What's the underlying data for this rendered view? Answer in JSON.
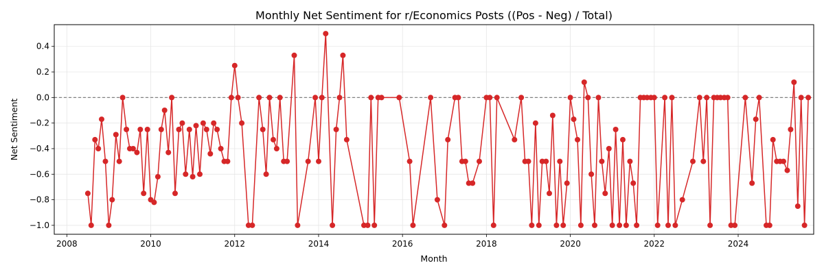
{
  "chart_data": {
    "type": "line",
    "title": "Monthly Net Sentiment for r/Economics Posts ((Pos - Neg) / Total)",
    "xlabel": "Month",
    "ylabel": "Net Sentiment",
    "xlim": [
      2007.7,
      2025.8
    ],
    "ylim": [
      -1.07,
      0.57
    ],
    "x_ticks": [
      2008,
      2010,
      2012,
      2014,
      2016,
      2018,
      2020,
      2022,
      2024
    ],
    "x_tick_labels": [
      "2008",
      "2010",
      "2012",
      "2014",
      "2016",
      "2018",
      "2020",
      "2022",
      "2024"
    ],
    "y_ticks": [
      -1.0,
      -0.8,
      -0.6,
      -0.4,
      -0.2,
      0.0,
      0.2,
      0.4
    ],
    "y_tick_labels": [
      "−1.0",
      "−0.8",
      "−0.6",
      "−0.4",
      "−0.2",
      "0.0",
      "0.2",
      "0.4"
    ],
    "grid": true,
    "reference_line": {
      "y": 0.0,
      "style": "dashed",
      "color": "#808080"
    },
    "series": [
      {
        "color": "#d62728",
        "marker": "circle",
        "points": [
          [
            2008.5,
            -0.75
          ],
          [
            2008.58,
            -1.0
          ],
          [
            2008.67,
            -0.33
          ],
          [
            2008.75,
            -0.4
          ],
          [
            2008.83,
            -0.17
          ],
          [
            2008.92,
            -0.5
          ],
          [
            2009.0,
            -1.0
          ],
          [
            2009.08,
            -0.8
          ],
          [
            2009.17,
            -0.29
          ],
          [
            2009.25,
            -0.5
          ],
          [
            2009.33,
            0.0
          ],
          [
            2009.42,
            -0.25
          ],
          [
            2009.5,
            -0.4
          ],
          [
            2009.58,
            -0.4
          ],
          [
            2009.67,
            -0.43
          ],
          [
            2009.75,
            -0.25
          ],
          [
            2009.83,
            -0.75
          ],
          [
            2009.92,
            -0.25
          ],
          [
            2010.0,
            -0.8
          ],
          [
            2010.08,
            -0.82
          ],
          [
            2010.17,
            -0.62
          ],
          [
            2010.25,
            -0.25
          ],
          [
            2010.33,
            -0.1
          ],
          [
            2010.42,
            -0.43
          ],
          [
            2010.5,
            0.0
          ],
          [
            2010.58,
            -0.75
          ],
          [
            2010.67,
            -0.25
          ],
          [
            2010.75,
            -0.2
          ],
          [
            2010.83,
            -0.6
          ],
          [
            2010.92,
            -0.25
          ],
          [
            2011.0,
            -0.62
          ],
          [
            2011.08,
            -0.22
          ],
          [
            2011.17,
            -0.6
          ],
          [
            2011.25,
            -0.2
          ],
          [
            2011.33,
            -0.25
          ],
          [
            2011.42,
            -0.44
          ],
          [
            2011.5,
            -0.2
          ],
          [
            2011.58,
            -0.25
          ],
          [
            2011.67,
            -0.4
          ],
          [
            2011.75,
            -0.5
          ],
          [
            2011.83,
            -0.5
          ],
          [
            2011.92,
            0.0
          ],
          [
            2012.0,
            0.25
          ],
          [
            2012.08,
            0.0
          ],
          [
            2012.17,
            -0.2
          ],
          [
            2012.33,
            -1.0
          ],
          [
            2012.42,
            -1.0
          ],
          [
            2012.58,
            0.0
          ],
          [
            2012.67,
            -0.25
          ],
          [
            2012.75,
            -0.6
          ],
          [
            2012.83,
            0.0
          ],
          [
            2012.92,
            -0.33
          ],
          [
            2013.0,
            -0.4
          ],
          [
            2013.08,
            0.0
          ],
          [
            2013.17,
            -0.5
          ],
          [
            2013.25,
            -0.5
          ],
          [
            2013.42,
            0.33
          ],
          [
            2013.5,
            -1.0
          ],
          [
            2013.75,
            -0.5
          ],
          [
            2013.92,
            0.0
          ],
          [
            2014.0,
            -0.5
          ],
          [
            2014.08,
            0.0
          ],
          [
            2014.17,
            0.5
          ],
          [
            2014.33,
            -1.0
          ],
          [
            2014.42,
            -0.25
          ],
          [
            2014.5,
            0.0
          ],
          [
            2014.58,
            0.33
          ],
          [
            2014.67,
            -0.33
          ],
          [
            2015.08,
            -1.0
          ],
          [
            2015.17,
            -1.0
          ],
          [
            2015.25,
            0.0
          ],
          [
            2015.33,
            -1.0
          ],
          [
            2015.42,
            0.0
          ],
          [
            2015.5,
            0.0
          ],
          [
            2015.92,
            0.0
          ],
          [
            2016.17,
            -0.5
          ],
          [
            2016.25,
            -1.0
          ],
          [
            2016.67,
            0.0
          ],
          [
            2016.83,
            -0.8
          ],
          [
            2017.0,
            -1.0
          ],
          [
            2017.08,
            -0.33
          ],
          [
            2017.25,
            0.0
          ],
          [
            2017.33,
            0.0
          ],
          [
            2017.42,
            -0.5
          ],
          [
            2017.5,
            -0.5
          ],
          [
            2017.58,
            -0.67
          ],
          [
            2017.67,
            -0.67
          ],
          [
            2017.83,
            -0.5
          ],
          [
            2018.0,
            0.0
          ],
          [
            2018.08,
            0.0
          ],
          [
            2018.17,
            -1.0
          ],
          [
            2018.25,
            0.0
          ],
          [
            2018.67,
            -0.33
          ],
          [
            2018.83,
            0.0
          ],
          [
            2018.92,
            -0.5
          ],
          [
            2019.0,
            -0.5
          ],
          [
            2019.08,
            -1.0
          ],
          [
            2019.17,
            -0.2
          ],
          [
            2019.25,
            -1.0
          ],
          [
            2019.33,
            -0.5
          ],
          [
            2019.42,
            -0.5
          ],
          [
            2019.5,
            -0.75
          ],
          [
            2019.58,
            -0.14
          ],
          [
            2019.67,
            -1.0
          ],
          [
            2019.75,
            -0.5
          ],
          [
            2019.83,
            -1.0
          ],
          [
            2019.92,
            -0.67
          ],
          [
            2020.0,
            0.0
          ],
          [
            2020.08,
            -0.17
          ],
          [
            2020.17,
            -0.33
          ],
          [
            2020.25,
            -1.0
          ],
          [
            2020.33,
            0.12
          ],
          [
            2020.42,
            0.0
          ],
          [
            2020.5,
            -0.6
          ],
          [
            2020.58,
            -1.0
          ],
          [
            2020.67,
            0.0
          ],
          [
            2020.75,
            -0.5
          ],
          [
            2020.83,
            -0.75
          ],
          [
            2020.92,
            -0.4
          ],
          [
            2021.0,
            -1.0
          ],
          [
            2021.08,
            -0.25
          ],
          [
            2021.17,
            -1.0
          ],
          [
            2021.25,
            -0.33
          ],
          [
            2021.33,
            -1.0
          ],
          [
            2021.42,
            -0.5
          ],
          [
            2021.5,
            -0.67
          ],
          [
            2021.58,
            -1.0
          ],
          [
            2021.67,
            0.0
          ],
          [
            2021.75,
            0.0
          ],
          [
            2021.83,
            0.0
          ],
          [
            2021.92,
            0.0
          ],
          [
            2022.0,
            0.0
          ],
          [
            2022.08,
            -1.0
          ],
          [
            2022.25,
            0.0
          ],
          [
            2022.33,
            -1.0
          ],
          [
            2022.42,
            0.0
          ],
          [
            2022.5,
            -1.0
          ],
          [
            2022.67,
            -0.8
          ],
          [
            2022.92,
            -0.5
          ],
          [
            2023.08,
            0.0
          ],
          [
            2023.17,
            -0.5
          ],
          [
            2023.25,
            0.0
          ],
          [
            2023.33,
            -1.0
          ],
          [
            2023.42,
            0.0
          ],
          [
            2023.5,
            0.0
          ],
          [
            2023.58,
            0.0
          ],
          [
            2023.67,
            0.0
          ],
          [
            2023.75,
            0.0
          ],
          [
            2023.83,
            -1.0
          ],
          [
            2023.92,
            -1.0
          ],
          [
            2024.17,
            0.0
          ],
          [
            2024.33,
            -0.67
          ],
          [
            2024.42,
            -0.17
          ],
          [
            2024.5,
            0.0
          ],
          [
            2024.67,
            -1.0
          ],
          [
            2024.75,
            -1.0
          ],
          [
            2024.83,
            -0.33
          ],
          [
            2024.92,
            -0.5
          ],
          [
            2025.0,
            -0.5
          ],
          [
            2025.08,
            -0.5
          ],
          [
            2025.17,
            -0.57
          ],
          [
            2025.25,
            -0.25
          ],
          [
            2025.33,
            0.12
          ],
          [
            2025.42,
            -0.85
          ],
          [
            2025.5,
            0.0
          ],
          [
            2025.58,
            -1.0
          ],
          [
            2025.67,
            0.0
          ]
        ]
      }
    ]
  }
}
